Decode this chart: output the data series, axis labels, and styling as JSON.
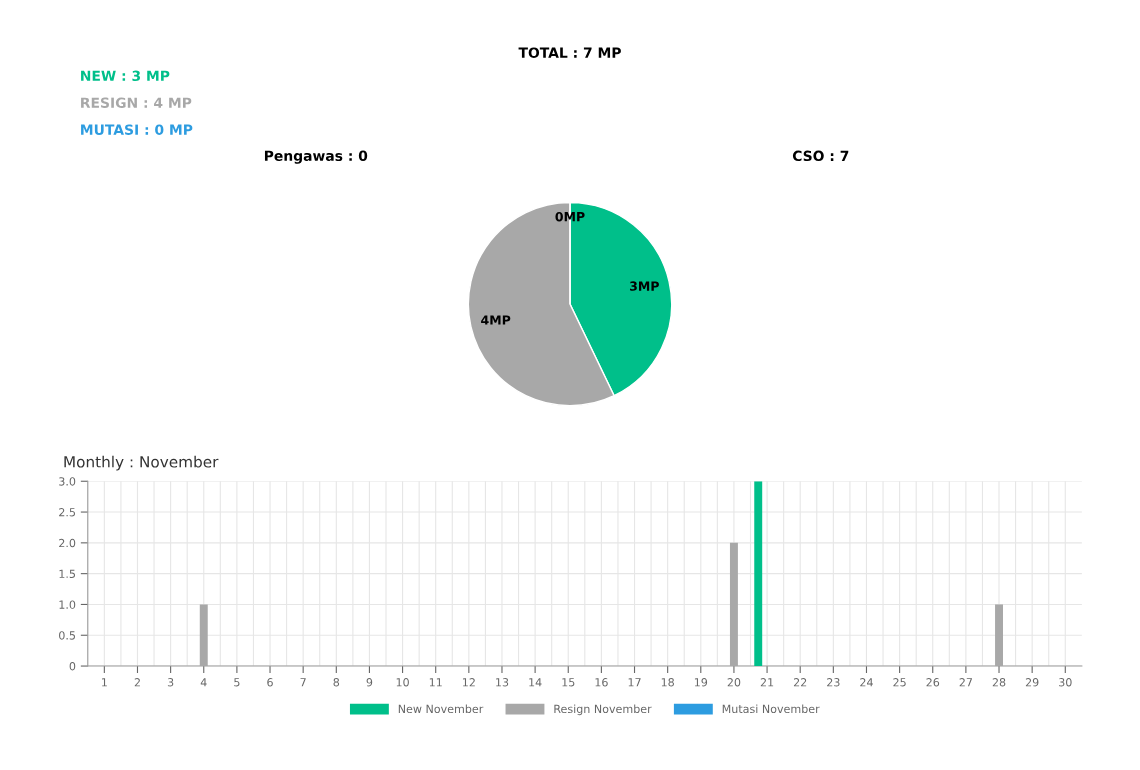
{
  "chart_data": [
    {
      "type": "pie",
      "title": "TOTAL : 7 MP",
      "annotations": [
        "NEW : 3 MP",
        "RESIGN : 4 MP",
        "MUTASI : 0 MP",
        "Pengawas : 0",
        "CSO : 7"
      ],
      "categories": [
        null,
        null,
        null
      ],
      "values": [
        3,
        4,
        0
      ],
      "colors": [
        "#00bf8a",
        "#a8a8a8",
        "#2d9ce0"
      ],
      "value_labels": [
        "3MP",
        "4MP",
        "0MP"
      ]
    },
    {
      "type": "bar",
      "title": "Monthly : November",
      "categories": [
        "1",
        "2",
        "3",
        "4",
        "5",
        "6",
        "7",
        "8",
        "9",
        "10",
        "11",
        "12",
        "13",
        "14",
        "15",
        "16",
        "17",
        "18",
        "19",
        "20",
        "21",
        "22",
        "23",
        "24",
        "25",
        "26",
        "27",
        "28",
        "29",
        "30"
      ],
      "series": [
        {
          "name": "New November",
          "color": "#00bf8a",
          "values": [
            0,
            0,
            0,
            0,
            0,
            0,
            0,
            0,
            0,
            0,
            0,
            0,
            0,
            0,
            0,
            0,
            0,
            0,
            0,
            0,
            3,
            0,
            0,
            0,
            0,
            0,
            0,
            0,
            0,
            0
          ]
        },
        {
          "name": "Resign November",
          "color": "#a8a8a8",
          "values": [
            0,
            0,
            0,
            1,
            0,
            0,
            0,
            0,
            0,
            0,
            0,
            0,
            0,
            0,
            0,
            0,
            0,
            0,
            0,
            2,
            0,
            0,
            0,
            0,
            0,
            0,
            0,
            1,
            0,
            0
          ]
        },
        {
          "name": "Mutasi November",
          "color": "#2d9ce0",
          "values": [
            0,
            0,
            0,
            0,
            0,
            0,
            0,
            0,
            0,
            0,
            0,
            0,
            0,
            0,
            0,
            0,
            0,
            0,
            0,
            0,
            0,
            0,
            0,
            0,
            0,
            0,
            0,
            0,
            0,
            0
          ]
        }
      ],
      "ylim": [
        0,
        3
      ],
      "yticks": [
        0,
        0.5,
        {
          "value": 1,
          "label": "1.0"
        },
        1.5,
        {
          "value": 2,
          "label": "2.0"
        },
        2.5,
        {
          "value": 3,
          "label": "3.0"
        }
      ],
      "grid": true,
      "legend": "bottom"
    }
  ]
}
